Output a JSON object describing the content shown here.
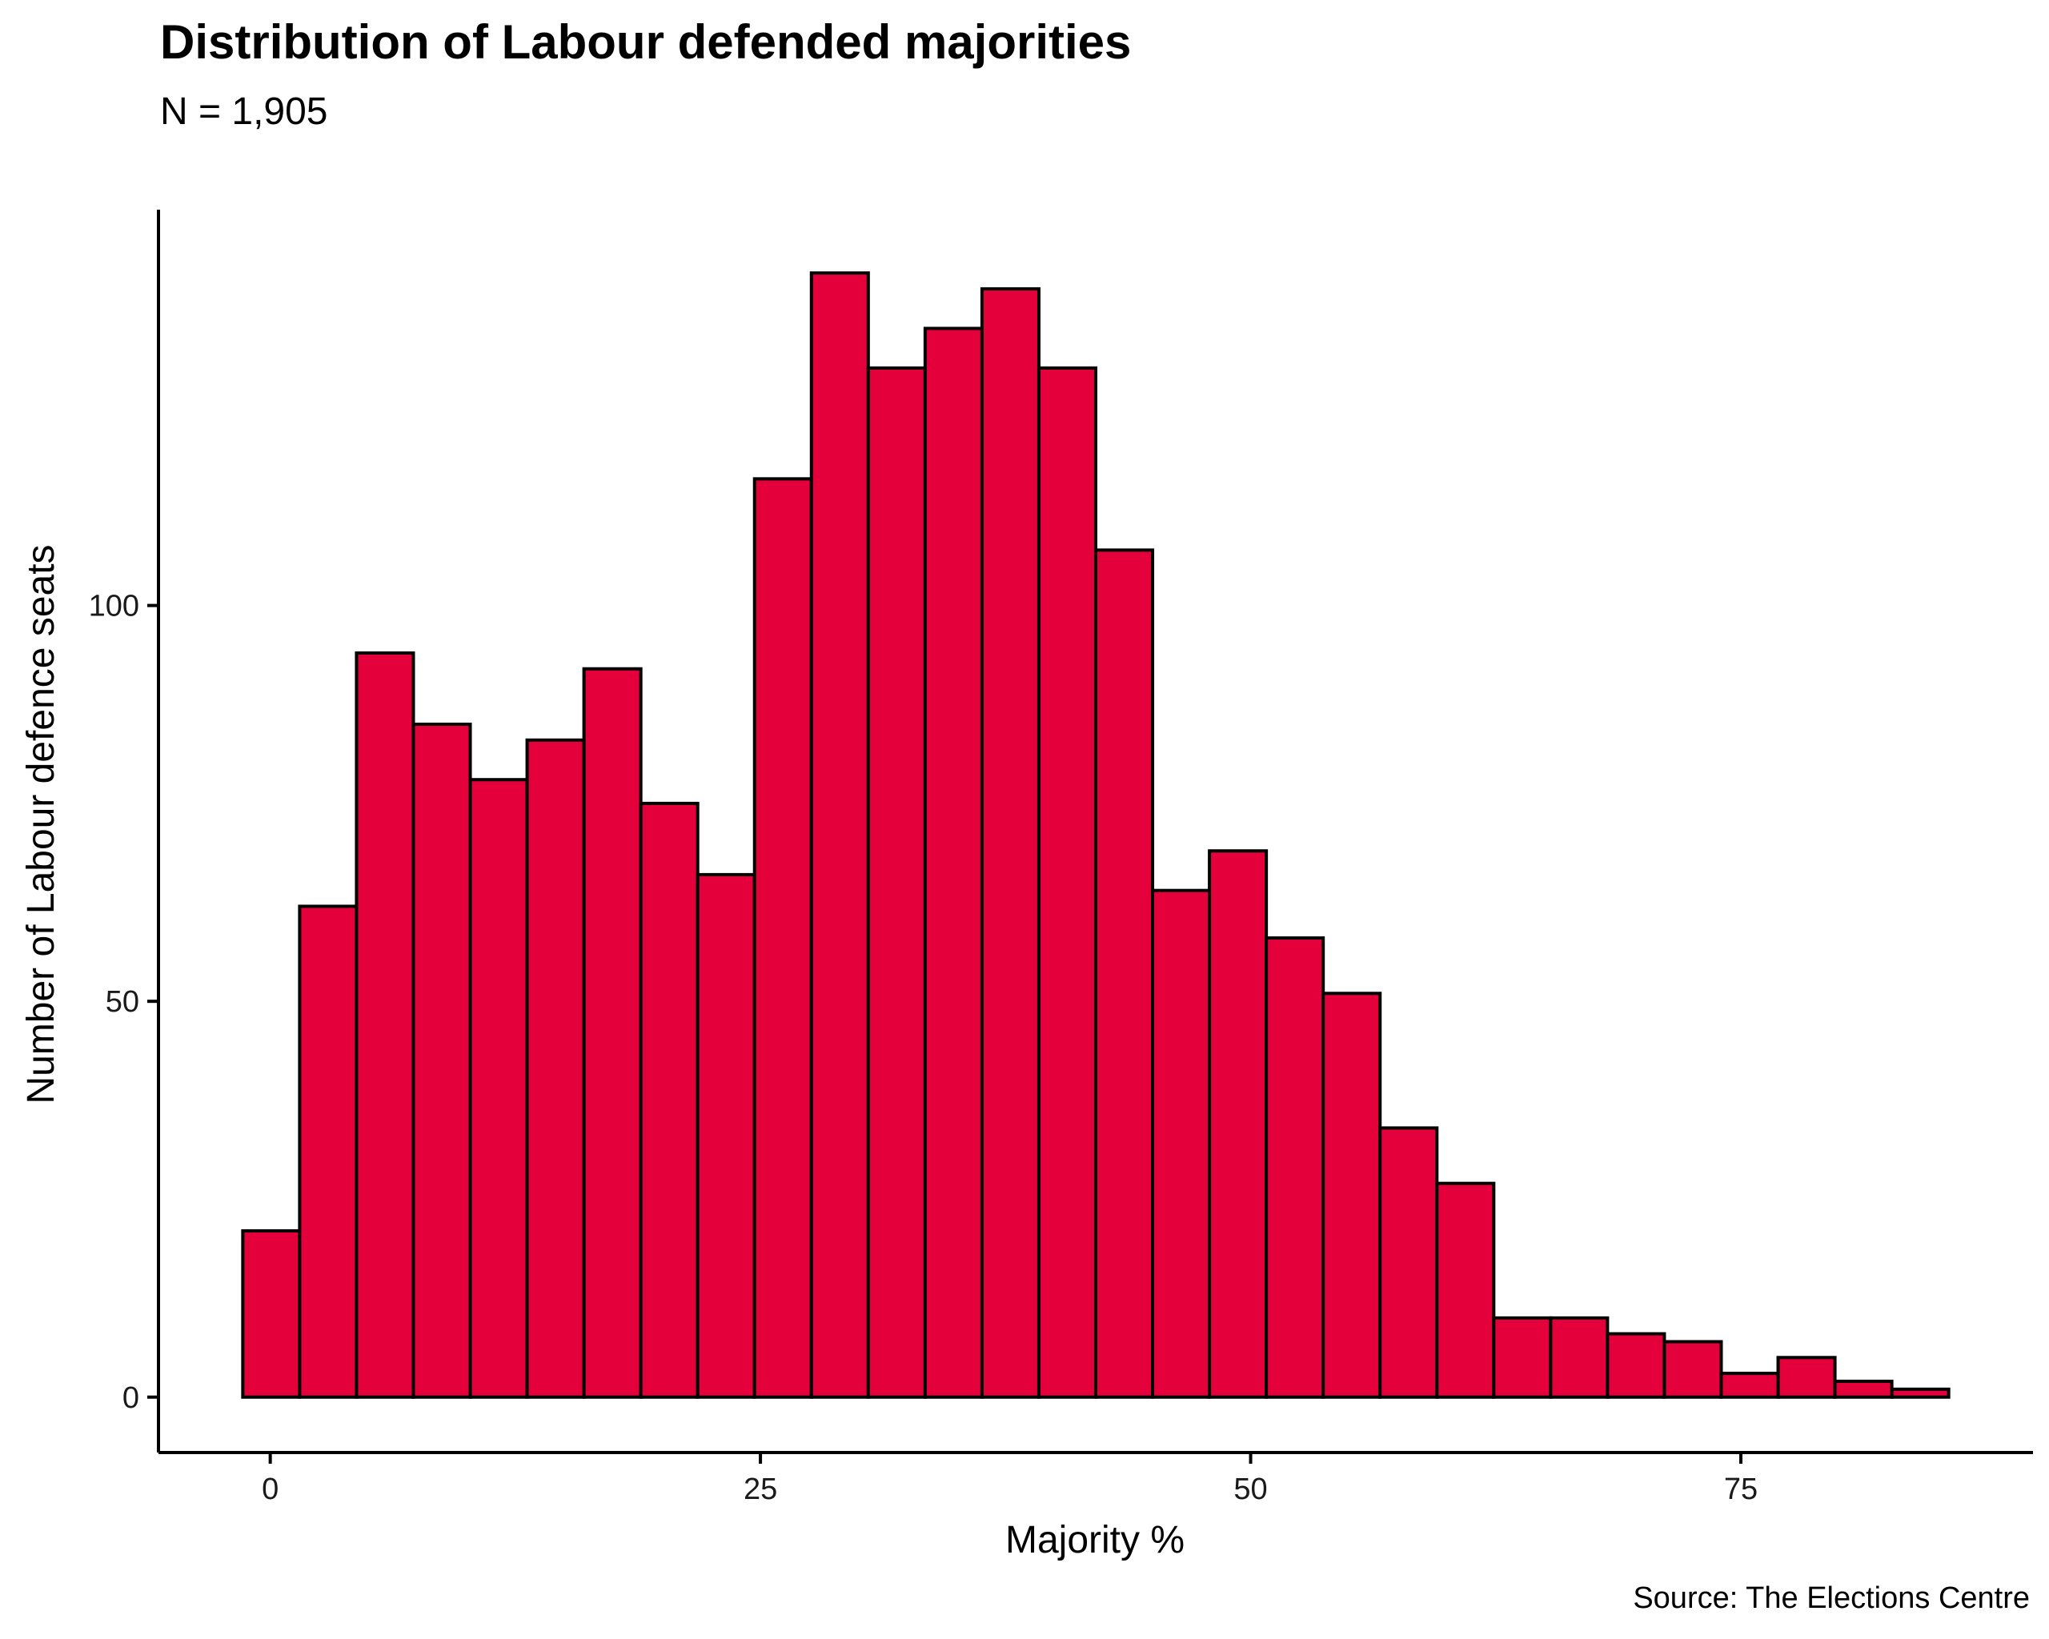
{
  "chart_data": {
    "type": "bar",
    "title": "Distribution of Labour defended majorities",
    "subtitle": "N = 1,905",
    "xlabel": "Majority %",
    "ylabel": "Number of Labour defence seats",
    "caption": "Source: The Elections Centre",
    "bin_width": 2.9,
    "bins": [
      {
        "x0": -1.4,
        "x1": 1.5,
        "count": 21
      },
      {
        "x0": 1.5,
        "x1": 4.4,
        "count": 62
      },
      {
        "x0": 4.4,
        "x1": 7.3,
        "count": 94
      },
      {
        "x0": 7.3,
        "x1": 10.2,
        "count": 85
      },
      {
        "x0": 10.2,
        "x1": 13.1,
        "count": 78
      },
      {
        "x0": 13.1,
        "x1": 16.0,
        "count": 83
      },
      {
        "x0": 16.0,
        "x1": 18.9,
        "count": 92
      },
      {
        "x0": 18.9,
        "x1": 21.8,
        "count": 75
      },
      {
        "x0": 21.8,
        "x1": 24.7,
        "count": 66
      },
      {
        "x0": 24.7,
        "x1": 27.6,
        "count": 116
      },
      {
        "x0": 27.6,
        "x1": 30.5,
        "count": 142
      },
      {
        "x0": 30.5,
        "x1": 33.4,
        "count": 130
      },
      {
        "x0": 33.4,
        "x1": 36.3,
        "count": 135
      },
      {
        "x0": 36.3,
        "x1": 39.2,
        "count": 140
      },
      {
        "x0": 39.2,
        "x1": 42.1,
        "count": 130
      },
      {
        "x0": 42.1,
        "x1": 45.0,
        "count": 107
      },
      {
        "x0": 45.0,
        "x1": 47.9,
        "count": 64
      },
      {
        "x0": 47.9,
        "x1": 50.8,
        "count": 69
      },
      {
        "x0": 50.8,
        "x1": 53.7,
        "count": 58
      },
      {
        "x0": 53.7,
        "x1": 56.6,
        "count": 51
      },
      {
        "x0": 56.6,
        "x1": 59.5,
        "count": 34
      },
      {
        "x0": 59.5,
        "x1": 62.4,
        "count": 27
      },
      {
        "x0": 62.4,
        "x1": 65.3,
        "count": 10
      },
      {
        "x0": 65.3,
        "x1": 68.2,
        "count": 10
      },
      {
        "x0": 68.2,
        "x1": 71.1,
        "count": 8
      },
      {
        "x0": 71.1,
        "x1": 74.0,
        "count": 7
      },
      {
        "x0": 74.0,
        "x1": 76.9,
        "count": 3
      },
      {
        "x0": 76.9,
        "x1": 79.8,
        "count": 5
      },
      {
        "x0": 79.8,
        "x1": 82.7,
        "count": 2
      },
      {
        "x0": 82.7,
        "x1": 85.6,
        "count": 1
      }
    ],
    "xlim": [
      -5.7,
      89.9
    ],
    "ylim": [
      -7,
      150
    ],
    "xticks": [
      0,
      25,
      50,
      75
    ],
    "yticks": [
      0,
      50,
      100
    ],
    "bar_color": "#E4003B",
    "bar_outline": "#000000",
    "grid": false,
    "legend": "none"
  }
}
